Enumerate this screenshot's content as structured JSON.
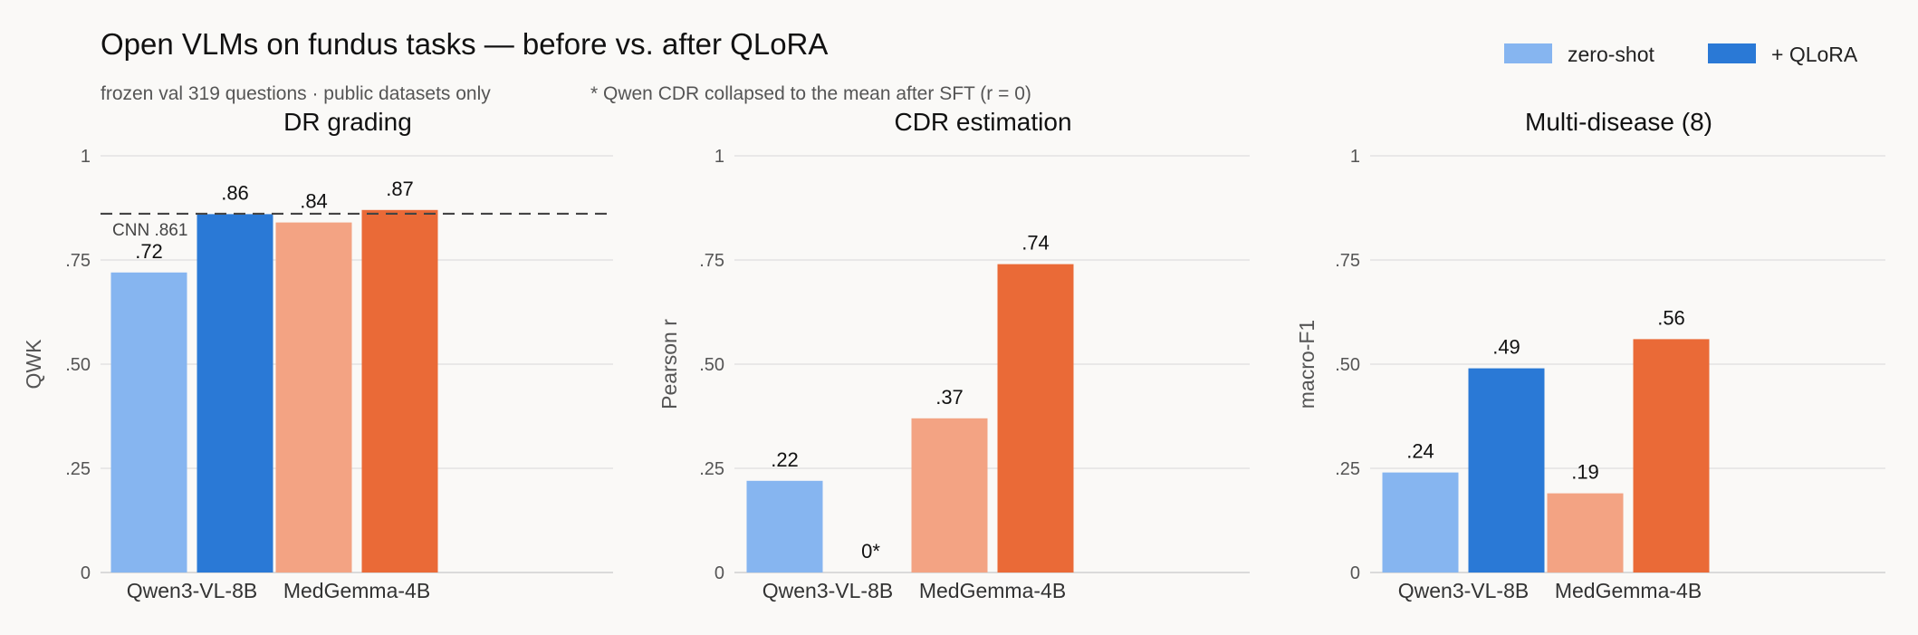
{
  "title": "Open VLMs on fundus tasks — before vs. after QLoRA",
  "subtitle": "frozen val 319 questions · public datasets only",
  "note": "* Qwen CDR collapsed to the mean after SFT (r = 0)",
  "legend": [
    {
      "label": "zero-shot",
      "color": "#86b5f0"
    },
    {
      "label": "+ QLoRA",
      "color": "#2a79d6"
    }
  ],
  "colors": {
    "qwen_zero": "#86b5f0",
    "qwen_qlora": "#2a79d6",
    "medgemma_zero": "#f3a383",
    "medgemma_qlora": "#ea6a37"
  },
  "chart_data": [
    {
      "type": "bar",
      "title": "DR grading",
      "ylabel": "QWK",
      "ylim": [
        0,
        1
      ],
      "yticks": [
        "0",
        ".25",
        ".50",
        ".75",
        "1"
      ],
      "categories": [
        "Qwen3-VL-8B",
        "MedGemma-4B"
      ],
      "series": [
        {
          "name": "zero-shot",
          "values": [
            0.72,
            0.84
          ],
          "labels": [
            ".72",
            ".84"
          ]
        },
        {
          "name": "+ QLoRA",
          "values": [
            0.86,
            0.87
          ],
          "labels": [
            ".86",
            ".87"
          ]
        }
      ],
      "reference_line": {
        "value": 0.861,
        "label": "CNN .861"
      }
    },
    {
      "type": "bar",
      "title": "CDR estimation",
      "ylabel": "Pearson r",
      "ylim": [
        0,
        1
      ],
      "yticks": [
        "0",
        ".25",
        ".50",
        ".75",
        "1"
      ],
      "categories": [
        "Qwen3-VL-8B",
        "MedGemma-4B"
      ],
      "series": [
        {
          "name": "zero-shot",
          "values": [
            0.22,
            0.37
          ],
          "labels": [
            ".22",
            ".37"
          ]
        },
        {
          "name": "+ QLoRA",
          "values": [
            0,
            0.74
          ],
          "labels": [
            "0*",
            ".74"
          ]
        }
      ]
    },
    {
      "type": "bar",
      "title": "Multi-disease (8)",
      "ylabel": "macro-F1",
      "ylim": [
        0,
        1
      ],
      "yticks": [
        "0",
        ".25",
        ".50",
        ".75",
        "1"
      ],
      "categories": [
        "Qwen3-VL-8B",
        "MedGemma-4B"
      ],
      "series": [
        {
          "name": "zero-shot",
          "values": [
            0.24,
            0.19
          ],
          "labels": [
            ".24",
            ".19"
          ]
        },
        {
          "name": "+ QLoRA",
          "values": [
            0.49,
            0.56
          ],
          "labels": [
            ".49",
            ".56"
          ]
        }
      ]
    }
  ]
}
